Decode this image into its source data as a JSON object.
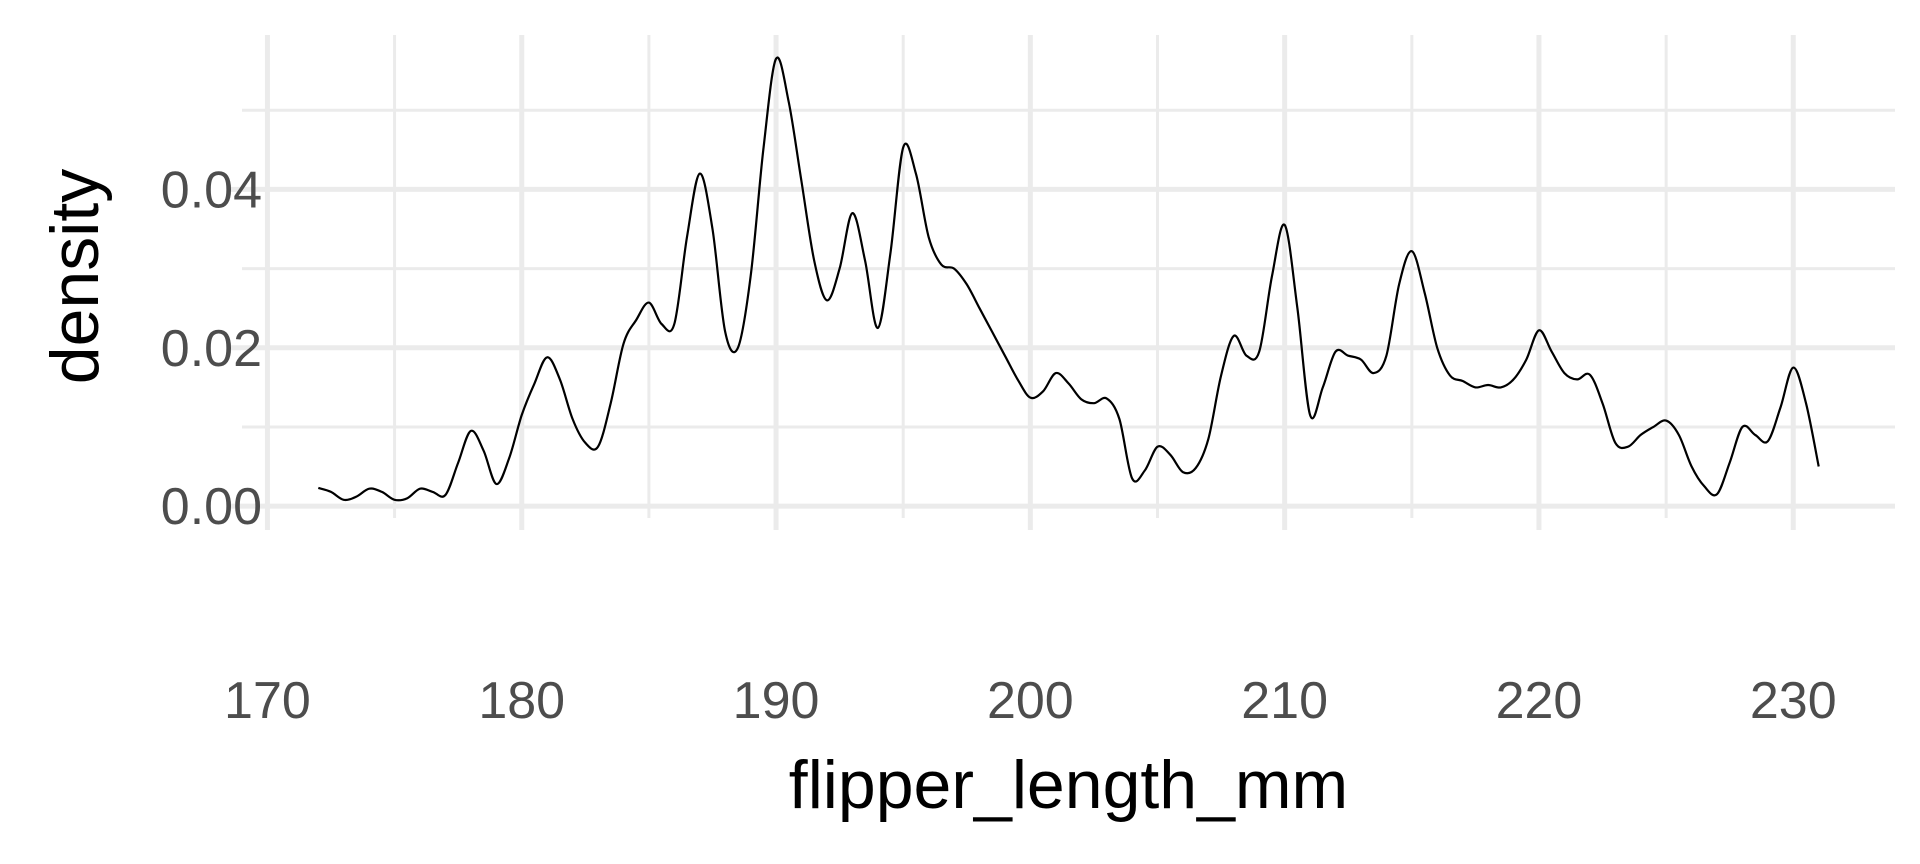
{
  "chart_data": {
    "type": "line",
    "title": "",
    "xlabel": "flipper_length_mm",
    "ylabel": "density",
    "xlim": [
      169,
      234
    ],
    "ylim": [
      -0.0015,
      0.0595
    ],
    "x_ticks": [
      170,
      180,
      190,
      200,
      210,
      220,
      230
    ],
    "x_tick_labels": [
      "170",
      "180",
      "190",
      "200",
      "210",
      "220",
      "230"
    ],
    "x_minor_ticks": [
      175,
      185,
      195,
      205,
      215,
      225
    ],
    "y_ticks": [
      0,
      0.02,
      0.04
    ],
    "y_tick_labels": [
      "0.00",
      "0.02",
      "0.04"
    ],
    "y_minor_ticks": [
      0.01,
      0.03,
      0.05
    ],
    "grid": true,
    "legend": "none",
    "line_color": "#000000",
    "series": [
      {
        "points": [
          [
            172,
            0.0023
          ],
          [
            172.5,
            0.0018
          ],
          [
            173,
            0.0008
          ],
          [
            173.5,
            0.0012
          ],
          [
            174,
            0.0022
          ],
          [
            174.5,
            0.0018
          ],
          [
            175,
            0.0008
          ],
          [
            175.5,
            0.001
          ],
          [
            176,
            0.0022
          ],
          [
            176.5,
            0.0018
          ],
          [
            177,
            0.0014
          ],
          [
            177.5,
            0.0055
          ],
          [
            178,
            0.0095
          ],
          [
            178.5,
            0.007
          ],
          [
            179,
            0.0028
          ],
          [
            179.5,
            0.006
          ],
          [
            180,
            0.0115
          ],
          [
            180.5,
            0.0155
          ],
          [
            181,
            0.0188
          ],
          [
            181.5,
            0.016
          ],
          [
            182,
            0.011
          ],
          [
            182.5,
            0.008
          ],
          [
            183,
            0.0075
          ],
          [
            183.5,
            0.013
          ],
          [
            184,
            0.0205
          ],
          [
            184.5,
            0.0235
          ],
          [
            185,
            0.0257
          ],
          [
            185.5,
            0.023
          ],
          [
            186,
            0.023
          ],
          [
            186.5,
            0.034
          ],
          [
            187,
            0.042
          ],
          [
            187.5,
            0.035
          ],
          [
            188,
            0.022
          ],
          [
            188.5,
            0.02
          ],
          [
            189,
            0.029
          ],
          [
            189.5,
            0.045
          ],
          [
            190,
            0.0565
          ],
          [
            190.5,
            0.051
          ],
          [
            191,
            0.041
          ],
          [
            191.5,
            0.031
          ],
          [
            192,
            0.026
          ],
          [
            192.5,
            0.03
          ],
          [
            193,
            0.037
          ],
          [
            193.5,
            0.031
          ],
          [
            194,
            0.0225
          ],
          [
            194.5,
            0.032
          ],
          [
            195,
            0.0453
          ],
          [
            195.5,
            0.042
          ],
          [
            196,
            0.034
          ],
          [
            196.5,
            0.0305
          ],
          [
            197,
            0.03
          ],
          [
            197.5,
            0.028
          ],
          [
            198,
            0.025
          ],
          [
            198.5,
            0.022
          ],
          [
            199,
            0.019
          ],
          [
            199.5,
            0.016
          ],
          [
            200,
            0.0137
          ],
          [
            200.5,
            0.0145
          ],
          [
            201,
            0.0168
          ],
          [
            201.5,
            0.0155
          ],
          [
            202,
            0.0135
          ],
          [
            202.5,
            0.013
          ],
          [
            203,
            0.0136
          ],
          [
            203.5,
            0.011
          ],
          [
            204,
            0.0035
          ],
          [
            204.5,
            0.0045
          ],
          [
            205,
            0.0075
          ],
          [
            205.5,
            0.0065
          ],
          [
            206,
            0.0043
          ],
          [
            206.5,
            0.0048
          ],
          [
            207,
            0.0085
          ],
          [
            207.5,
            0.0165
          ],
          [
            208,
            0.0215
          ],
          [
            208.5,
            0.019
          ],
          [
            209,
            0.0195
          ],
          [
            209.5,
            0.029
          ],
          [
            210,
            0.0355
          ],
          [
            210.5,
            0.025
          ],
          [
            211,
            0.0115
          ],
          [
            211.5,
            0.015
          ],
          [
            212,
            0.0195
          ],
          [
            212.5,
            0.019
          ],
          [
            213,
            0.0185
          ],
          [
            213.5,
            0.0168
          ],
          [
            214,
            0.019
          ],
          [
            214.5,
            0.028
          ],
          [
            215,
            0.0322
          ],
          [
            215.5,
            0.027
          ],
          [
            216,
            0.02
          ],
          [
            216.5,
            0.0165
          ],
          [
            217,
            0.0158
          ],
          [
            217.5,
            0.015
          ],
          [
            218,
            0.0153
          ],
          [
            218.5,
            0.015
          ],
          [
            219,
            0.016
          ],
          [
            219.5,
            0.0185
          ],
          [
            220,
            0.0222
          ],
          [
            220.5,
            0.0195
          ],
          [
            221,
            0.0168
          ],
          [
            221.5,
            0.016
          ],
          [
            222,
            0.0166
          ],
          [
            222.5,
            0.013
          ],
          [
            223,
            0.008
          ],
          [
            223.5,
            0.0075
          ],
          [
            224,
            0.009
          ],
          [
            224.5,
            0.01
          ],
          [
            225,
            0.0108
          ],
          [
            225.5,
            0.009
          ],
          [
            226,
            0.005
          ],
          [
            226.5,
            0.0025
          ],
          [
            227,
            0.0015
          ],
          [
            227.5,
            0.0055
          ],
          [
            228,
            0.01
          ],
          [
            228.5,
            0.009
          ],
          [
            229,
            0.0082
          ],
          [
            229.5,
            0.0125
          ],
          [
            230,
            0.0175
          ],
          [
            230.5,
            0.013
          ],
          [
            231,
            0.005
          ]
        ]
      }
    ]
  }
}
